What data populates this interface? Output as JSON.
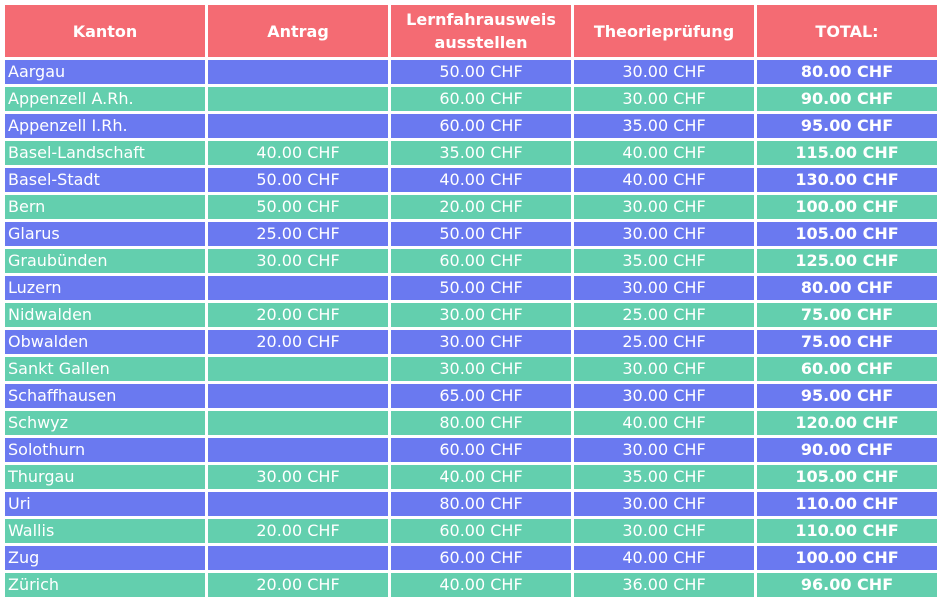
{
  "colors": {
    "header": "#f46b73",
    "row_blue": "#6a79f0",
    "row_green": "#63cfae",
    "text": "#ffffff"
  },
  "table": {
    "headers": {
      "canton": "Kanton",
      "application": "Antrag",
      "learner_permit_line1": "Lernfahrausweis",
      "learner_permit_line2": "ausstellen",
      "theory_exam": "Theorieprüfung",
      "total": "TOTAL:"
    },
    "rows": [
      {
        "canton": "Aargau",
        "application": "",
        "learner_permit": "50.00 CHF",
        "theory_exam": "30.00 CHF",
        "total": "80.00 CHF"
      },
      {
        "canton": "Appenzell A.Rh.",
        "application": "",
        "learner_permit": "60.00 CHF",
        "theory_exam": "30.00 CHF",
        "total": "90.00 CHF"
      },
      {
        "canton": "Appenzell I.Rh.",
        "application": "",
        "learner_permit": "60.00 CHF",
        "theory_exam": "35.00 CHF",
        "total": "95.00 CHF"
      },
      {
        "canton": "Basel-Landschaft",
        "application": "40.00 CHF",
        "learner_permit": "35.00 CHF",
        "theory_exam": "40.00 CHF",
        "total": "115.00 CHF"
      },
      {
        "canton": "Basel-Stadt",
        "application": "50.00 CHF",
        "learner_permit": "40.00 CHF",
        "theory_exam": "40.00 CHF",
        "total": "130.00 CHF"
      },
      {
        "canton": "Bern",
        "application": "50.00 CHF",
        "learner_permit": "20.00 CHF",
        "theory_exam": "30.00 CHF",
        "total": "100.00 CHF"
      },
      {
        "canton": "Glarus",
        "application": "25.00 CHF",
        "learner_permit": "50.00 CHF",
        "theory_exam": "30.00 CHF",
        "total": "105.00 CHF"
      },
      {
        "canton": "Graubünden",
        "application": "30.00 CHF",
        "learner_permit": "60.00 CHF",
        "theory_exam": "35.00 CHF",
        "total": "125.00 CHF"
      },
      {
        "canton": "Luzern",
        "application": "",
        "learner_permit": "50.00 CHF",
        "theory_exam": "30.00 CHF",
        "total": "80.00 CHF"
      },
      {
        "canton": "Nidwalden",
        "application": "20.00 CHF",
        "learner_permit": "30.00 CHF",
        "theory_exam": "25.00 CHF",
        "total": "75.00 CHF"
      },
      {
        "canton": "Obwalden",
        "application": "20.00 CHF",
        "learner_permit": "30.00 CHF",
        "theory_exam": "25.00 CHF",
        "total": "75.00 CHF"
      },
      {
        "canton": "Sankt Gallen",
        "application": "",
        "learner_permit": "30.00 CHF",
        "theory_exam": "30.00 CHF",
        "total": "60.00 CHF"
      },
      {
        "canton": "Schaffhausen",
        "application": "",
        "learner_permit": "65.00 CHF",
        "theory_exam": "30.00 CHF",
        "total": "95.00 CHF"
      },
      {
        "canton": "Schwyz",
        "application": "",
        "learner_permit": "80.00 CHF",
        "theory_exam": "40.00 CHF",
        "total": "120.00 CHF"
      },
      {
        "canton": "Solothurn",
        "application": "",
        "learner_permit": "60.00 CHF",
        "theory_exam": "30.00 CHF",
        "total": "90.00 CHF"
      },
      {
        "canton": "Thurgau",
        "application": "30.00 CHF",
        "learner_permit": "40.00 CHF",
        "theory_exam": "35.00 CHF",
        "total": "105.00 CHF"
      },
      {
        "canton": "Uri",
        "application": "",
        "learner_permit": "80.00 CHF",
        "theory_exam": "30.00 CHF",
        "total": "110.00 CHF"
      },
      {
        "canton": "Wallis",
        "application": "20.00 CHF",
        "learner_permit": "60.00 CHF",
        "theory_exam": "30.00 CHF",
        "total": "110.00 CHF"
      },
      {
        "canton": "Zug",
        "application": "",
        "learner_permit": "60.00 CHF",
        "theory_exam": "40.00 CHF",
        "total": "100.00 CHF"
      },
      {
        "canton": "Zürich",
        "application": "20.00 CHF",
        "learner_permit": "40.00 CHF",
        "theory_exam": "36.00 CHF",
        "total": "96.00 CHF"
      }
    ]
  }
}
